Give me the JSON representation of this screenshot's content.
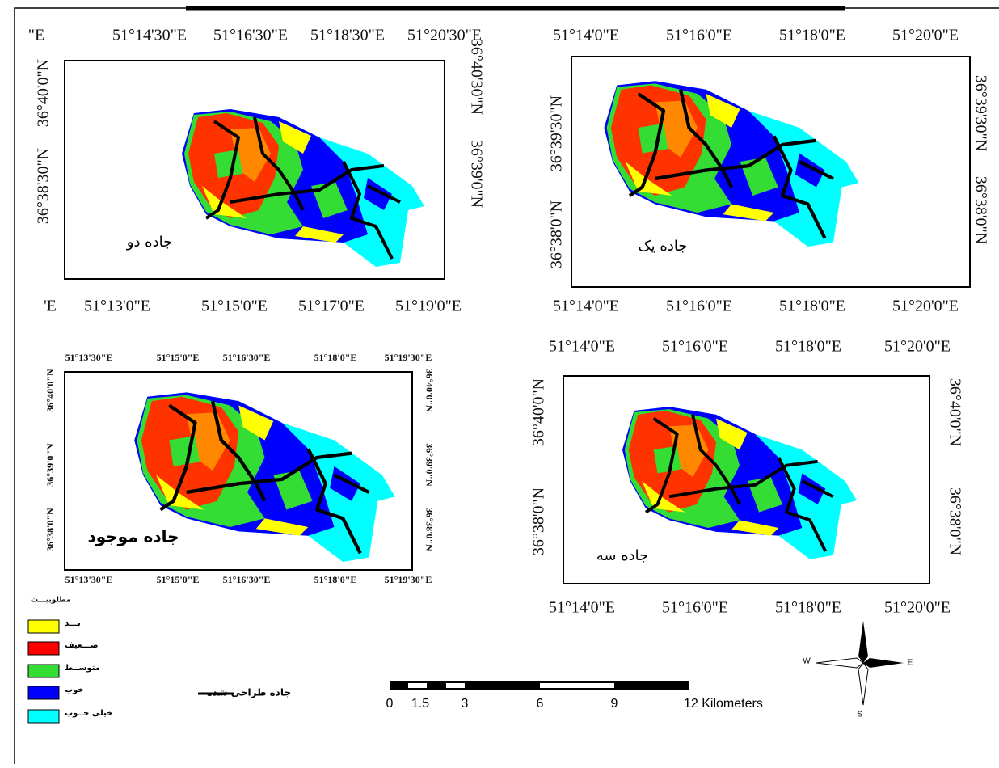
{
  "panels": [
    {
      "label": "جاده دو",
      "top": [
        "\"E",
        "51°14'30\"E",
        "51°16'30\"E",
        "51°18'30\"E",
        "51°20'30\"E"
      ],
      "bottom": [
        "'E",
        "51°13'0\"E",
        "51°15'0\"E",
        "51°17'0\"E",
        "51°19'0\"E"
      ],
      "left": [
        "36°40'0\"N",
        "36°38'30\"N"
      ],
      "right": [
        "36°40'30\"N",
        "36°39'0\"N"
      ]
    },
    {
      "label": "جاده یک",
      "top": [
        "51°14'0\"E",
        "51°16'0\"E",
        "51°18'0\"E",
        "51°20'0\"E"
      ],
      "bottom": [
        "51°14'0\"E",
        "51°16'0\"E",
        "51°18'0\"E",
        "51°20'0\"E"
      ],
      "left": [
        "36°39'30\"N",
        "36°38'0\"N"
      ],
      "right": [
        "36°39'30\"N",
        "36°38'0\"N"
      ]
    },
    {
      "label": "جاده موجود",
      "top": [
        "51°13'30\"E",
        "51°15'0\"E",
        "51°16'30\"E",
        "51°18'0\"E",
        "51°19'30\"E"
      ],
      "bottom": [
        "51°13'30\"E",
        "51°15'0\"E",
        "51°16'30\"E",
        "51°18'0\"E",
        "51°19'30\"E"
      ],
      "left": [
        "36°40'0\"N",
        "36°39'0\"N",
        "36°38'0\"N"
      ],
      "right": [
        "36°40'0\"N",
        "36°39'0\"N",
        "36°38'0\"N"
      ]
    },
    {
      "label": "جاده سه",
      "top": [
        "51°14'0\"E",
        "51°16'0\"E",
        "51°18'0\"E",
        "51°20'0\"E"
      ],
      "bottom": [
        "51°14'0\"E",
        "51°16'0\"E",
        "51°18'0\"E",
        "51°20'0\"E"
      ],
      "left": [
        "36°40'0\"N",
        "36°38'0\"N"
      ],
      "right": [
        "36°40'0\"N",
        "36°38'0\"N"
      ]
    }
  ],
  "legend": {
    "title": "مطلوبیـــت",
    "items": [
      {
        "label": "بـــد",
        "color": "#ffff00"
      },
      {
        "label": "ضـــعیف",
        "color": "#ff0000"
      },
      {
        "label": "متوســط",
        "color": "#33dd33"
      },
      {
        "label": "خوب",
        "color": "#0000ff"
      },
      {
        "label": "خیلی خــوب",
        "color": "#00ffff"
      }
    ],
    "road": "جاده طراحی شده"
  },
  "scale_bar": [
    "0",
    "1.5",
    "3",
    "6",
    "9",
    "12 Kilometers"
  ],
  "north_arrow": {
    "west": "W",
    "east": "E",
    "south": "S"
  }
}
